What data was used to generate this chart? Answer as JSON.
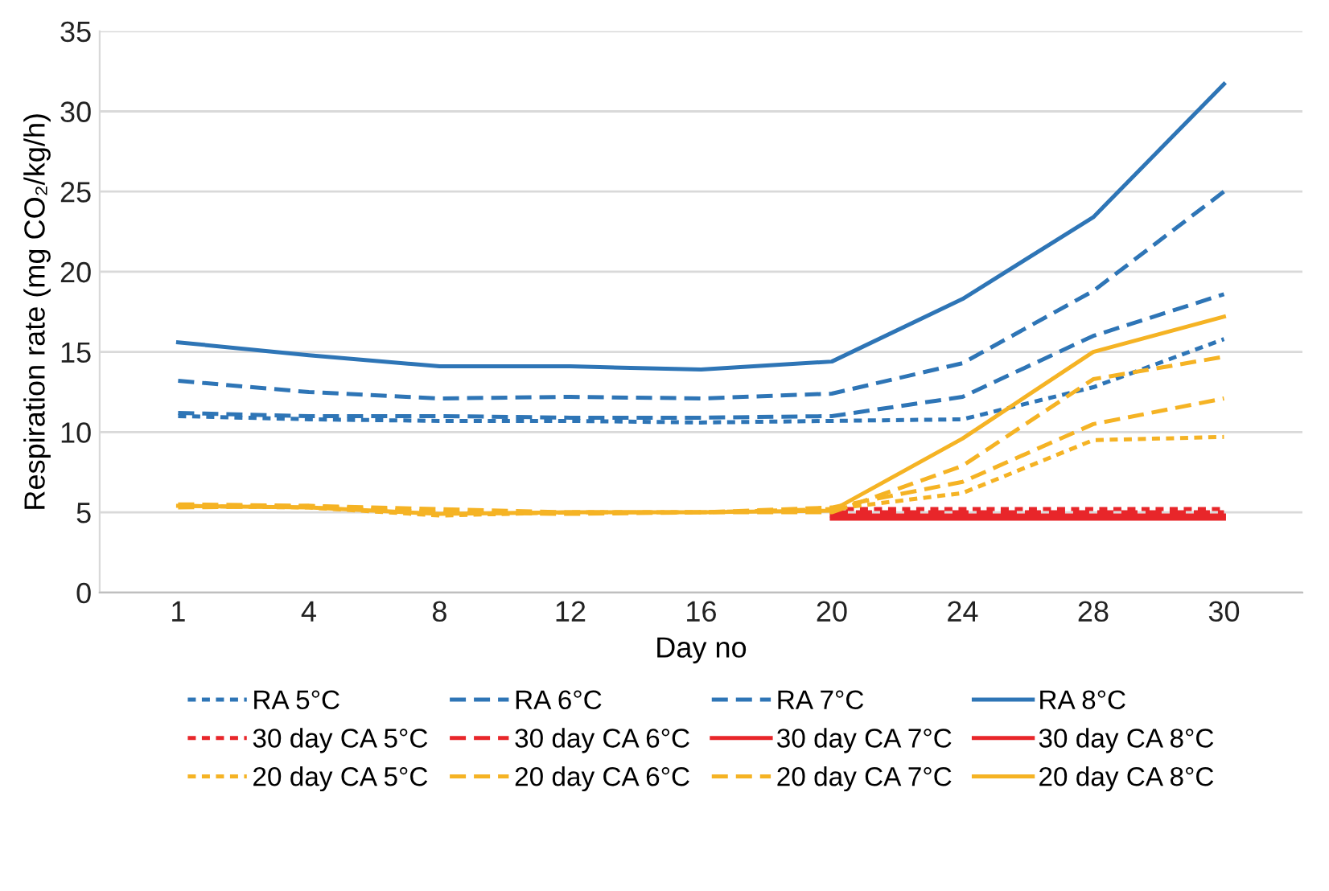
{
  "chart_data": {
    "type": "line",
    "xlabel": "Day no",
    "ylabel": "Respiration rate (mg CO₂/kg/h)",
    "categories": [
      "1",
      "4",
      "8",
      "12",
      "16",
      "20",
      "24",
      "28",
      "30"
    ],
    "ylim": [
      0,
      35
    ],
    "yticks": [
      0,
      5,
      10,
      15,
      20,
      25,
      30,
      35
    ],
    "grid": "y",
    "legend": "bottom",
    "series": [
      {
        "name": "RA 5°C",
        "color": "#2e75b6",
        "line_style": "dotted",
        "values": [
          11.0,
          10.8,
          10.7,
          10.7,
          10.6,
          10.7,
          10.8,
          12.8,
          15.8
        ]
      },
      {
        "name": "RA 6°C",
        "color": "#2e75b6",
        "line_style": "dashed",
        "values": [
          11.2,
          11.0,
          11.0,
          10.9,
          10.9,
          11.0,
          12.2,
          16.0,
          18.6
        ]
      },
      {
        "name": "RA 7°C",
        "color": "#2e75b6",
        "line_style": "dashed",
        "values": [
          13.2,
          12.5,
          12.1,
          12.2,
          12.1,
          12.4,
          14.3,
          18.8,
          25.0
        ]
      },
      {
        "name": "RA 8°C",
        "color": "#2e75b6",
        "line_style": "solid",
        "values": [
          15.6,
          14.8,
          14.1,
          14.1,
          13.9,
          14.4,
          18.3,
          23.4,
          31.7
        ]
      },
      {
        "name": "30 day CA 5°C",
        "color": "#e8262a",
        "line_style": "dotted",
        "values": [
          null,
          null,
          null,
          null,
          null,
          5.2,
          5.2,
          5.2,
          5.2
        ]
      },
      {
        "name": "30 day CA 6°C",
        "color": "#e8262a",
        "line_style": "dashed",
        "values": [
          null,
          null,
          null,
          null,
          null,
          5.0,
          5.0,
          5.0,
          5.0
        ]
      },
      {
        "name": "30 day CA 7°C",
        "color": "#e8262a",
        "line_style": "solid",
        "values": [
          null,
          null,
          null,
          null,
          null,
          4.8,
          4.8,
          4.8,
          4.8
        ]
      },
      {
        "name": "30 day CA 8°C",
        "color": "#e8262a",
        "line_style": "solid",
        "values": [
          null,
          null,
          null,
          null,
          null,
          4.6,
          4.6,
          4.6,
          4.6
        ]
      },
      {
        "name": "20 day CA 5°C",
        "color": "#f5b324",
        "line_style": "dotted",
        "values": [
          5.4,
          5.3,
          4.8,
          5.0,
          5.0,
          5.2,
          6.2,
          9.5,
          9.7
        ]
      },
      {
        "name": "20 day CA 6°C",
        "color": "#f5b324",
        "line_style": "dashed",
        "values": [
          5.3,
          5.4,
          5.2,
          5.0,
          5.0,
          5.3,
          6.9,
          10.5,
          12.1
        ]
      },
      {
        "name": "20 day CA 7°C",
        "color": "#f5b324",
        "line_style": "dashed",
        "values": [
          5.5,
          5.4,
          5.0,
          4.9,
          5.0,
          5.0,
          7.9,
          13.3,
          14.7
        ]
      },
      {
        "name": "20 day CA 8°C",
        "color": "#f5b324",
        "line_style": "solid",
        "values": [
          5.4,
          5.3,
          4.9,
          5.0,
          5.0,
          5.1,
          9.6,
          15.0,
          17.2
        ]
      }
    ]
  }
}
